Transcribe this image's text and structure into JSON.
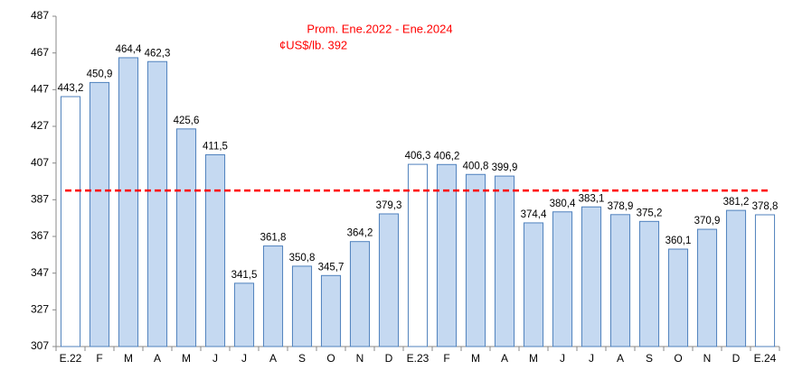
{
  "chart_data": {
    "type": "bar",
    "categories": [
      "E.22",
      "F",
      "M",
      "A",
      "M",
      "J",
      "J",
      "A",
      "S",
      "O",
      "N",
      "D",
      "E.23",
      "F",
      "M",
      "A",
      "M",
      "J",
      "J",
      "A",
      "S",
      "O",
      "N",
      "D",
      "E.24"
    ],
    "values": [
      443.2,
      450.9,
      464.4,
      462.3,
      425.6,
      411.5,
      341.5,
      361.8,
      350.8,
      345.7,
      364.2,
      379.3,
      406.3,
      406.2,
      400.8,
      399.9,
      374.4,
      380.4,
      383.1,
      378.9,
      375.2,
      360.1,
      370.9,
      381.2,
      378.8
    ],
    "value_labels": [
      "443,2",
      "450,9",
      "464,4",
      "462,3",
      "425,6",
      "411,5",
      "341,5",
      "361,8",
      "350,8",
      "345,7",
      "364,2",
      "379,3",
      "406,3",
      "406,2",
      "400,8",
      "399,9",
      "374,4",
      "380,4",
      "383,1",
      "378,9",
      "375,2",
      "360,1",
      "370,9",
      "381,2",
      "378,8"
    ],
    "colors": [
      "#ffffff",
      "#c5d9f1",
      "#c5d9f1",
      "#c5d9f1",
      "#c5d9f1",
      "#c5d9f1",
      "#c5d9f1",
      "#c5d9f1",
      "#c5d9f1",
      "#c5d9f1",
      "#c5d9f1",
      "#c5d9f1",
      "#ffffff",
      "#c5d9f1",
      "#c5d9f1",
      "#c5d9f1",
      "#c5d9f1",
      "#c5d9f1",
      "#c5d9f1",
      "#c5d9f1",
      "#c5d9f1",
      "#c5d9f1",
      "#c5d9f1",
      "#c5d9f1",
      "#ffffff"
    ],
    "border_color": "#4f81bd",
    "ylim": [
      307,
      487
    ],
    "yticks": [
      307,
      327,
      347,
      367,
      387,
      407,
      427,
      447,
      467,
      487
    ],
    "reference_line": {
      "value": 392,
      "color": "#ff0000"
    },
    "annotations": [
      "Prom. Ene.2022 - Ene.2024",
      "¢US$/lb. 392"
    ]
  }
}
